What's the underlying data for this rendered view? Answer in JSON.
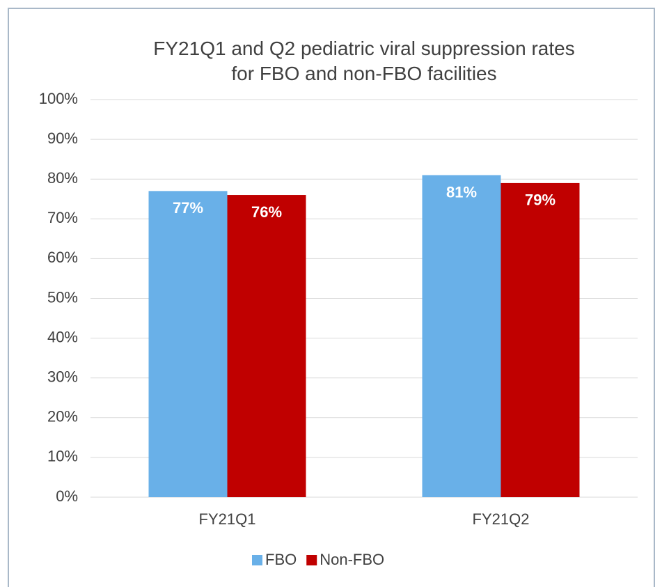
{
  "chart_data": {
    "type": "bar",
    "title": "FY21Q1 and Q2 pediatric viral suppression rates for FBO and non-FBO facilities",
    "categories": [
      "FY21Q1",
      "FY21Q2"
    ],
    "series": [
      {
        "name": "FBO",
        "color": "#69b0e8",
        "values": [
          77,
          81
        ],
        "value_labels": [
          "77%",
          "81%"
        ]
      },
      {
        "name": "Non-FBO",
        "color": "#c00000",
        "values": [
          76,
          79
        ],
        "value_labels": [
          "76%",
          "79%"
        ]
      }
    ],
    "ylim": [
      0,
      100
    ],
    "yticks": [
      {
        "value": 0,
        "label": "0%"
      },
      {
        "value": 10,
        "label": "10%"
      },
      {
        "value": 20,
        "label": "20%"
      },
      {
        "value": 30,
        "label": "30%"
      },
      {
        "value": 40,
        "label": "40%"
      },
      {
        "value": 50,
        "label": "50%"
      },
      {
        "value": 60,
        "label": "60%"
      },
      {
        "value": 70,
        "label": "70%"
      },
      {
        "value": 80,
        "label": "80%"
      },
      {
        "value": 90,
        "label": "90%"
      },
      {
        "value": 100,
        "label": "100%"
      }
    ],
    "grid": true,
    "legend": "bottom"
  }
}
